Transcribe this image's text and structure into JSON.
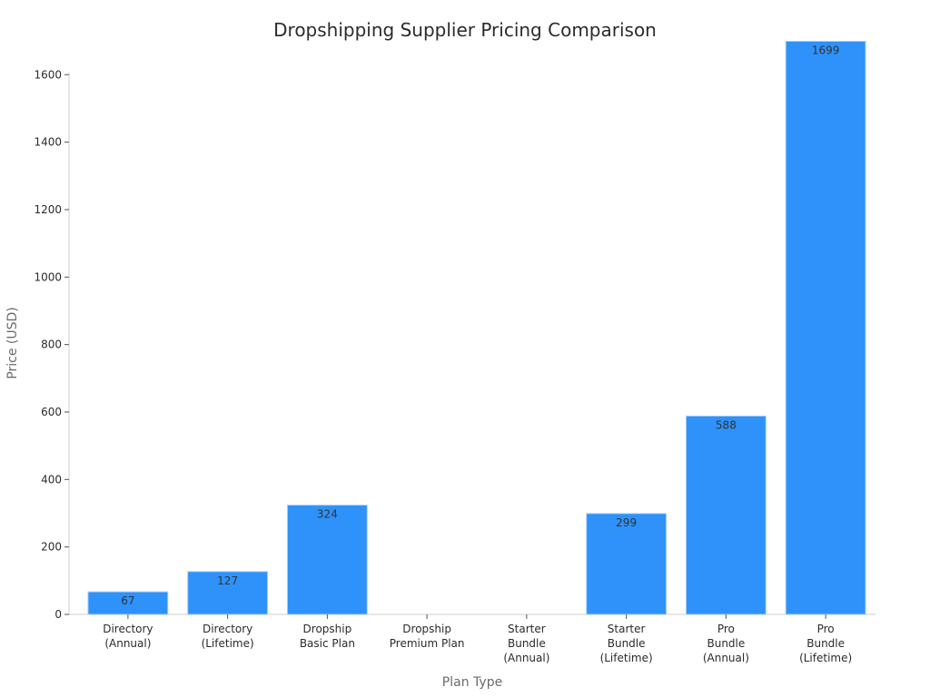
{
  "chart_data": {
    "type": "bar",
    "title": "Dropshipping Supplier Pricing Comparison",
    "xlabel": "Plan Type",
    "ylabel": "Price (USD)",
    "categories": [
      [
        "Directory",
        "(Annual)"
      ],
      [
        "Directory",
        "(Lifetime)"
      ],
      [
        "Dropship",
        "Basic Plan"
      ],
      [
        "Dropship",
        "Premium Plan"
      ],
      [
        "Starter",
        "Bundle",
        "(Annual)"
      ],
      [
        "Starter",
        "Bundle",
        "(Lifetime)"
      ],
      [
        "Pro",
        "Bundle",
        "(Annual)"
      ],
      [
        "Pro",
        "Bundle",
        "(Lifetime)"
      ]
    ],
    "values": [
      67,
      127,
      324,
      null,
      null,
      299,
      588,
      1699
    ],
    "data_labels": [
      "67",
      "127",
      "324",
      "",
      "",
      "299",
      "588",
      "1699"
    ],
    "ylim": [
      0,
      1790
    ],
    "yticks": [
      0,
      200,
      400,
      600,
      800,
      1000,
      1200,
      1400,
      1600
    ],
    "grid": false,
    "bar_color": "#2e92fa",
    "bar_edge_color": "#a9cdf5"
  }
}
